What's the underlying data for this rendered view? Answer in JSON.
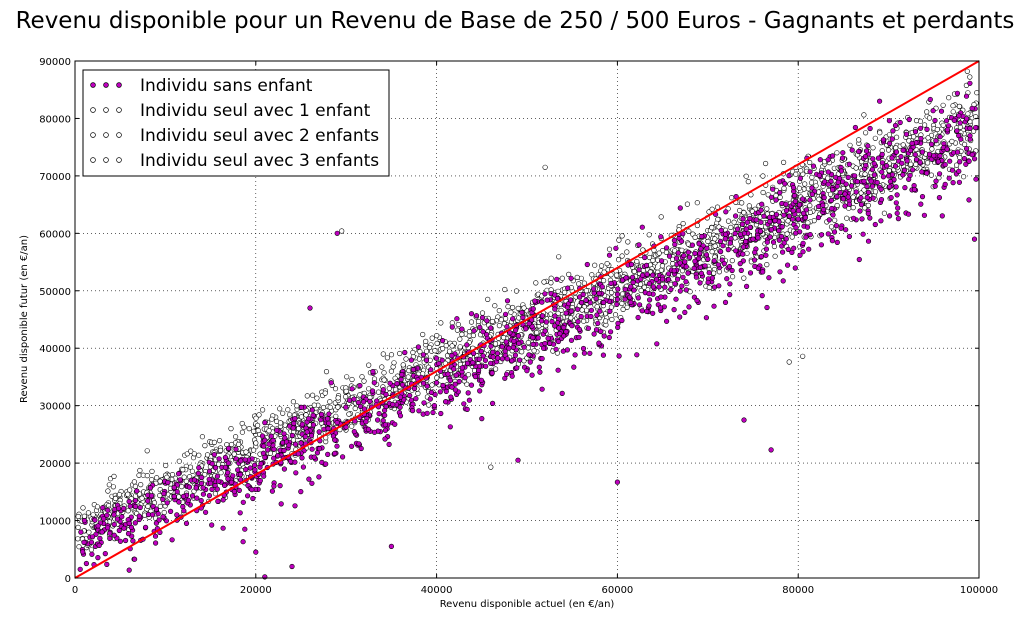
{
  "chart_data": {
    "type": "scatter",
    "title": "Revenu disponible pour un Revenu de Base de 250 / 500 Euros - Gagnants et perdants",
    "xlabel": "Revenu disponible actuel (en €/an)",
    "ylabel": "Revenu disponible futur (en €/an)",
    "xlim": [
      0,
      100000
    ],
    "ylim": [
      0,
      90000
    ],
    "xticks": [
      "0",
      "20000",
      "40000",
      "60000",
      "80000",
      "100000"
    ],
    "yticks": [
      "0",
      "10000",
      "20000",
      "30000",
      "40000",
      "50000",
      "60000",
      "70000",
      "80000",
      "90000"
    ],
    "grid": true,
    "legend_position": "top-left",
    "series": [
      {
        "name": "Individu sans enfant",
        "color": "#bf00bf",
        "edge": "#000000",
        "trend": {
          "intercept": 5800,
          "slope": 0.72,
          "spread": 3800
        },
        "points": [
          [
            1000,
            6200
          ],
          [
            3000,
            8000
          ],
          [
            6000,
            9500
          ],
          [
            9000,
            12000
          ],
          [
            12000,
            14200
          ],
          [
            15000,
            16500
          ],
          [
            18000,
            18800
          ],
          [
            21000,
            21000
          ],
          [
            25000,
            23500
          ],
          [
            28000,
            26000
          ],
          [
            32000,
            28500
          ],
          [
            36000,
            31500
          ],
          [
            40000,
            34000
          ],
          [
            44000,
            37500
          ],
          [
            48000,
            40000
          ],
          [
            52000,
            43000
          ],
          [
            56000,
            45500
          ],
          [
            60000,
            48500
          ],
          [
            65000,
            52000
          ],
          [
            70000,
            55500
          ],
          [
            75000,
            59000
          ],
          [
            80000,
            62500
          ],
          [
            85000,
            66000
          ],
          [
            90000,
            70000
          ],
          [
            95000,
            73500
          ],
          [
            99000,
            77000
          ],
          [
            26000,
            47000
          ],
          [
            29000,
            60000
          ],
          [
            22000,
            16000
          ],
          [
            35000,
            5500
          ],
          [
            49000,
            20500
          ],
          [
            60000,
            16700
          ],
          [
            77000,
            22300
          ],
          [
            74000,
            27500
          ],
          [
            87000,
            65000
          ],
          [
            99500,
            59000
          ],
          [
            89000,
            83000
          ],
          [
            20000,
            4500
          ],
          [
            21000,
            200
          ],
          [
            24000,
            2000
          ]
        ]
      },
      {
        "name": "Individu seul avec 1 enfant",
        "color": "#ffffff",
        "edge": "#000000",
        "trend": {
          "intercept": 10500,
          "slope": 0.7,
          "spread": 3200
        },
        "points": [
          [
            500,
            10000
          ],
          [
            5000,
            13500
          ],
          [
            10000,
            17500
          ],
          [
            15000,
            21000
          ],
          [
            20000,
            25000
          ],
          [
            25000,
            28500
          ],
          [
            30000,
            32500
          ],
          [
            35000,
            36000
          ],
          [
            40000,
            39500
          ],
          [
            45000,
            43000
          ],
          [
            50000,
            46500
          ],
          [
            55000,
            50000
          ],
          [
            60000,
            53500
          ],
          [
            65000,
            57000
          ],
          [
            70000,
            60500
          ],
          [
            75000,
            64000
          ],
          [
            80000,
            67500
          ],
          [
            85000,
            71000
          ],
          [
            90000,
            74500
          ],
          [
            95000,
            78000
          ],
          [
            99000,
            81000
          ],
          [
            52000,
            71500
          ],
          [
            29500,
            60400
          ],
          [
            79000,
            37600
          ],
          [
            80500,
            38600
          ],
          [
            46000,
            19300
          ]
        ]
      },
      {
        "name": "Individu seul avec 2 enfants",
        "color": "#ffffff",
        "edge": "#000000",
        "trend": {
          "intercept": 9000,
          "slope": 0.7,
          "spread": 3000
        },
        "points": [
          [
            2000,
            11000
          ],
          [
            8000,
            15000
          ],
          [
            14000,
            19500
          ],
          [
            20000,
            23500
          ],
          [
            26000,
            27500
          ],
          [
            32000,
            31500
          ],
          [
            38000,
            35500
          ],
          [
            44000,
            40000
          ],
          [
            50000,
            44000
          ],
          [
            56000,
            48000
          ],
          [
            62000,
            52500
          ],
          [
            68000,
            56500
          ],
          [
            74000,
            60500
          ],
          [
            80000,
            64500
          ],
          [
            86000,
            69000
          ],
          [
            92000,
            73000
          ],
          [
            98000,
            77500
          ]
        ]
      },
      {
        "name": "Individu seul avec 3 enfants",
        "color": "#ffffff",
        "edge": "#000000",
        "trend": {
          "intercept": 7500,
          "slope": 0.7,
          "spread": 2800
        },
        "points": [
          [
            1000,
            8200
          ],
          [
            7000,
            12500
          ],
          [
            13000,
            16800
          ],
          [
            19000,
            21000
          ],
          [
            25000,
            25200
          ],
          [
            31000,
            29500
          ],
          [
            37000,
            33800
          ],
          [
            43000,
            38000
          ],
          [
            49000,
            42200
          ],
          [
            55000,
            46500
          ],
          [
            61000,
            50800
          ],
          [
            67000,
            55000
          ],
          [
            73000,
            59200
          ],
          [
            79000,
            63500
          ],
          [
            85000,
            67800
          ],
          [
            91000,
            72000
          ],
          [
            97000,
            76000
          ]
        ]
      }
    ],
    "reference_line": {
      "from": [
        0,
        0
      ],
      "to": [
        100000,
        90000
      ],
      "color": "#ff0000"
    }
  }
}
